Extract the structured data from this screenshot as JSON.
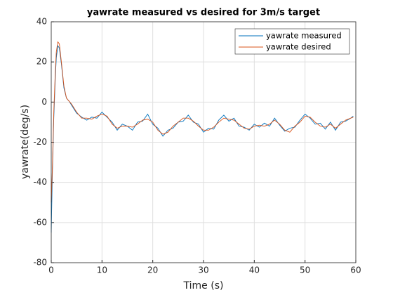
{
  "chart_data": {
    "type": "line",
    "title": "yawrate measured vs desired for 3m/s target",
    "xlabel": "Time (s)",
    "ylabel": "yawrate(deg/s)",
    "x": [
      0,
      0.2,
      0.5,
      0.8,
      1.0,
      1.3,
      1.6,
      2,
      2.5,
      3,
      3.5,
      4,
      5,
      6,
      7,
      8,
      9,
      10,
      11,
      12,
      13,
      14,
      15,
      16,
      17,
      18,
      19,
      20,
      21,
      22,
      23,
      24,
      25,
      26,
      27,
      28,
      29,
      30,
      31,
      32,
      33,
      34,
      35,
      36,
      37,
      38,
      39,
      40,
      41,
      42,
      43,
      44,
      45,
      46,
      47,
      48,
      49,
      50,
      51,
      52,
      53,
      54,
      55,
      56,
      57,
      58,
      59,
      59.5
    ],
    "series": [
      {
        "name": "yawrate measured",
        "color": "#0072BD",
        "values": [
          -65,
          -38,
          -8,
          12,
          22,
          28,
          27,
          19,
          7,
          2,
          0.5,
          -1.5,
          -5.5,
          -7.5,
          -9,
          -7.5,
          -8,
          -5,
          -7.5,
          -10,
          -14,
          -11,
          -12,
          -14,
          -10,
          -9.5,
          -6,
          -11,
          -13,
          -17,
          -14,
          -13,
          -10,
          -9.5,
          -6.5,
          -10,
          -11,
          -15,
          -13,
          -13.5,
          -9,
          -6.5,
          -9.5,
          -8,
          -12,
          -12.5,
          -14,
          -11,
          -12.5,
          -10.5,
          -12,
          -8,
          -11.5,
          -14.5,
          -13,
          -12.5,
          -9,
          -6,
          -8,
          -11,
          -10.5,
          -13.5,
          -10,
          -14,
          -10,
          -9.5,
          -8,
          -7
        ]
      },
      {
        "name": "yawrate desired",
        "color": "#D95319",
        "values": [
          -50,
          -35,
          -5,
          15,
          25,
          30,
          29,
          20,
          8,
          2,
          0.5,
          -1,
          -5,
          -8,
          -8,
          -8.5,
          -7,
          -6,
          -7,
          -11,
          -13,
          -12,
          -12,
          -12.5,
          -11,
          -9,
          -8.5,
          -10,
          -14,
          -16,
          -15,
          -12,
          -10,
          -8,
          -8,
          -9.5,
          -12,
          -14,
          -14,
          -12.5,
          -10,
          -8,
          -8.5,
          -9,
          -11,
          -13,
          -13.5,
          -12,
          -11.5,
          -12,
          -11,
          -9,
          -11,
          -14,
          -15,
          -12,
          -10,
          -7,
          -7.5,
          -10,
          -12,
          -12.5,
          -11,
          -13,
          -11,
          -9,
          -8,
          -7.5
        ]
      }
    ],
    "xlim": [
      0,
      60
    ],
    "xticks": [
      0,
      10,
      20,
      30,
      40,
      50,
      60
    ],
    "ylim": [
      -80,
      40
    ],
    "yticks": [
      -80,
      -60,
      -40,
      -20,
      0,
      20,
      40
    ],
    "grid": true,
    "legend": "northeast"
  }
}
